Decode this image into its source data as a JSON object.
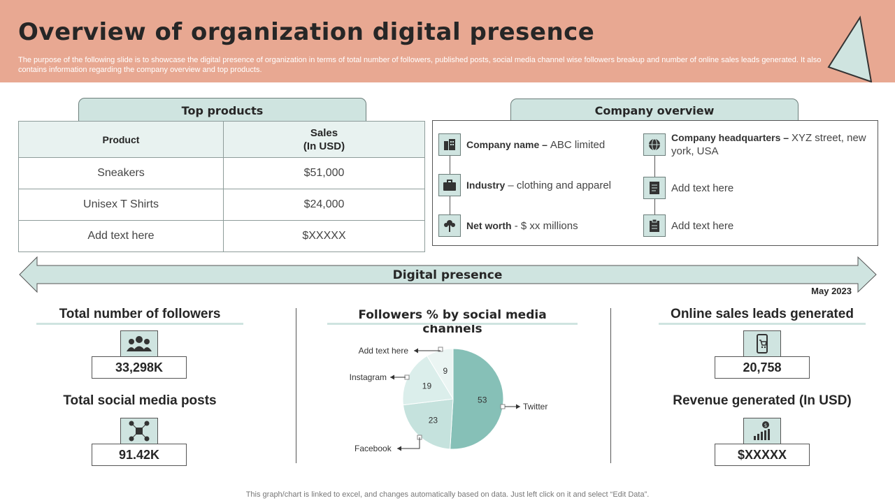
{
  "header": {
    "title": "Overview of organization digital presence",
    "description": "The purpose of the following slide is to showcase the digital presence of organization in terms of total number of followers, published posts, social media channel wise followers breakup and number of online sales leads generated. It also contains information regarding the company overview and top products."
  },
  "top_products": {
    "title": "Top products",
    "col_product": "Product",
    "col_sales_line1": "Sales",
    "col_sales_line2": "(In USD)",
    "rows": [
      {
        "product": "Sneakers",
        "sales": "$51,000"
      },
      {
        "product": "Unisex T Shirts",
        "sales": "$24,000"
      },
      {
        "product": "Add text here",
        "sales": "$XXXXX"
      }
    ]
  },
  "company_overview": {
    "title": "Company overview",
    "name_label": "Company name – ",
    "name_value": "ABC limited",
    "industry_label": "Industry",
    "industry_value": " – clothing and apparel",
    "networth_label": "Net worth",
    "networth_value": " - $ xx millions",
    "hq_label": "Company headquarters – ",
    "hq_value": "XYZ street, new york, USA",
    "placeholder1": "Add text here",
    "placeholder2": "Add text here",
    "icons": [
      "building-icon",
      "briefcase-icon",
      "money-tree-icon",
      "globe-icon",
      "document-icon",
      "clipboard-icon"
    ]
  },
  "digital_presence": {
    "label": "Digital presence",
    "date": "May 2023"
  },
  "followers": {
    "title": "Total number of followers",
    "value": "33,298K",
    "icon": "people-icon"
  },
  "posts": {
    "title": "Total social media posts",
    "value": "91.42K",
    "icon": "social-network-icon"
  },
  "leads": {
    "title": "Online sales leads generated",
    "value": "20,758",
    "icon": "mobile-cart-icon"
  },
  "revenue": {
    "title": "Revenue generated (In USD)",
    "value": "$XXXXX",
    "icon": "growth-chart-icon"
  },
  "pie_title": "Followers % by social media channels",
  "chart_data": {
    "type": "pie",
    "title": "Followers % by social media channels",
    "slices": [
      {
        "label": "Twitter",
        "value": 53,
        "color": "#86c0b7"
      },
      {
        "label": "Facebook",
        "value": 23,
        "color": "#c5e2dd"
      },
      {
        "label": "Instagram",
        "value": 19,
        "color": "#dbeeeb"
      },
      {
        "label": "Add text here",
        "value": 9,
        "color": "#ebf5f3"
      }
    ]
  },
  "footer": "This graph/chart is linked to excel, and changes automatically based on data. Just left click on it and select “Edit Data”."
}
